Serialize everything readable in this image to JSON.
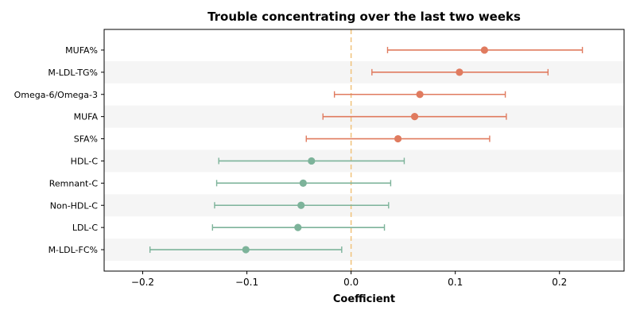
{
  "chart_data": {
    "type": "forest",
    "title": "Trouble concentrating over the last two weeks",
    "xlabel": "Coefficient",
    "ylabel": "",
    "xlim": [
      -0.237,
      0.262
    ],
    "xticks": [
      -0.2,
      -0.1,
      0.0,
      0.1,
      0.2
    ],
    "xtick_labels": [
      "−0.2",
      "−0.1",
      "0.0",
      "0.1",
      "0.2"
    ],
    "reference_line": 0,
    "row_striping": true,
    "colors": {
      "positive": "#e07b5f",
      "negative": "#7db39a",
      "reference_line": "#f0c27a",
      "stripe": "#f5f5f5"
    },
    "rows": [
      {
        "label": "MUFA%",
        "estimate": 0.128,
        "ci_low": 0.035,
        "ci_high": 0.222
      },
      {
        "label": "M-LDL-TG%",
        "estimate": 0.104,
        "ci_low": 0.02,
        "ci_high": 0.189
      },
      {
        "label": "Omega-6/Omega-3",
        "estimate": 0.066,
        "ci_low": -0.016,
        "ci_high": 0.148
      },
      {
        "label": "MUFA",
        "estimate": 0.061,
        "ci_low": -0.027,
        "ci_high": 0.149
      },
      {
        "label": "SFA%",
        "estimate": 0.045,
        "ci_low": -0.043,
        "ci_high": 0.133
      },
      {
        "label": "HDL-C",
        "estimate": -0.038,
        "ci_low": -0.127,
        "ci_high": 0.051
      },
      {
        "label": "Remnant-C",
        "estimate": -0.046,
        "ci_low": -0.129,
        "ci_high": 0.038
      },
      {
        "label": "Non-HDL-C",
        "estimate": -0.048,
        "ci_low": -0.131,
        "ci_high": 0.036
      },
      {
        "label": "LDL-C",
        "estimate": -0.051,
        "ci_low": -0.133,
        "ci_high": 0.032
      },
      {
        "label": "M-LDL-FC%",
        "estimate": -0.101,
        "ci_low": -0.193,
        "ci_high": -0.009
      }
    ]
  }
}
